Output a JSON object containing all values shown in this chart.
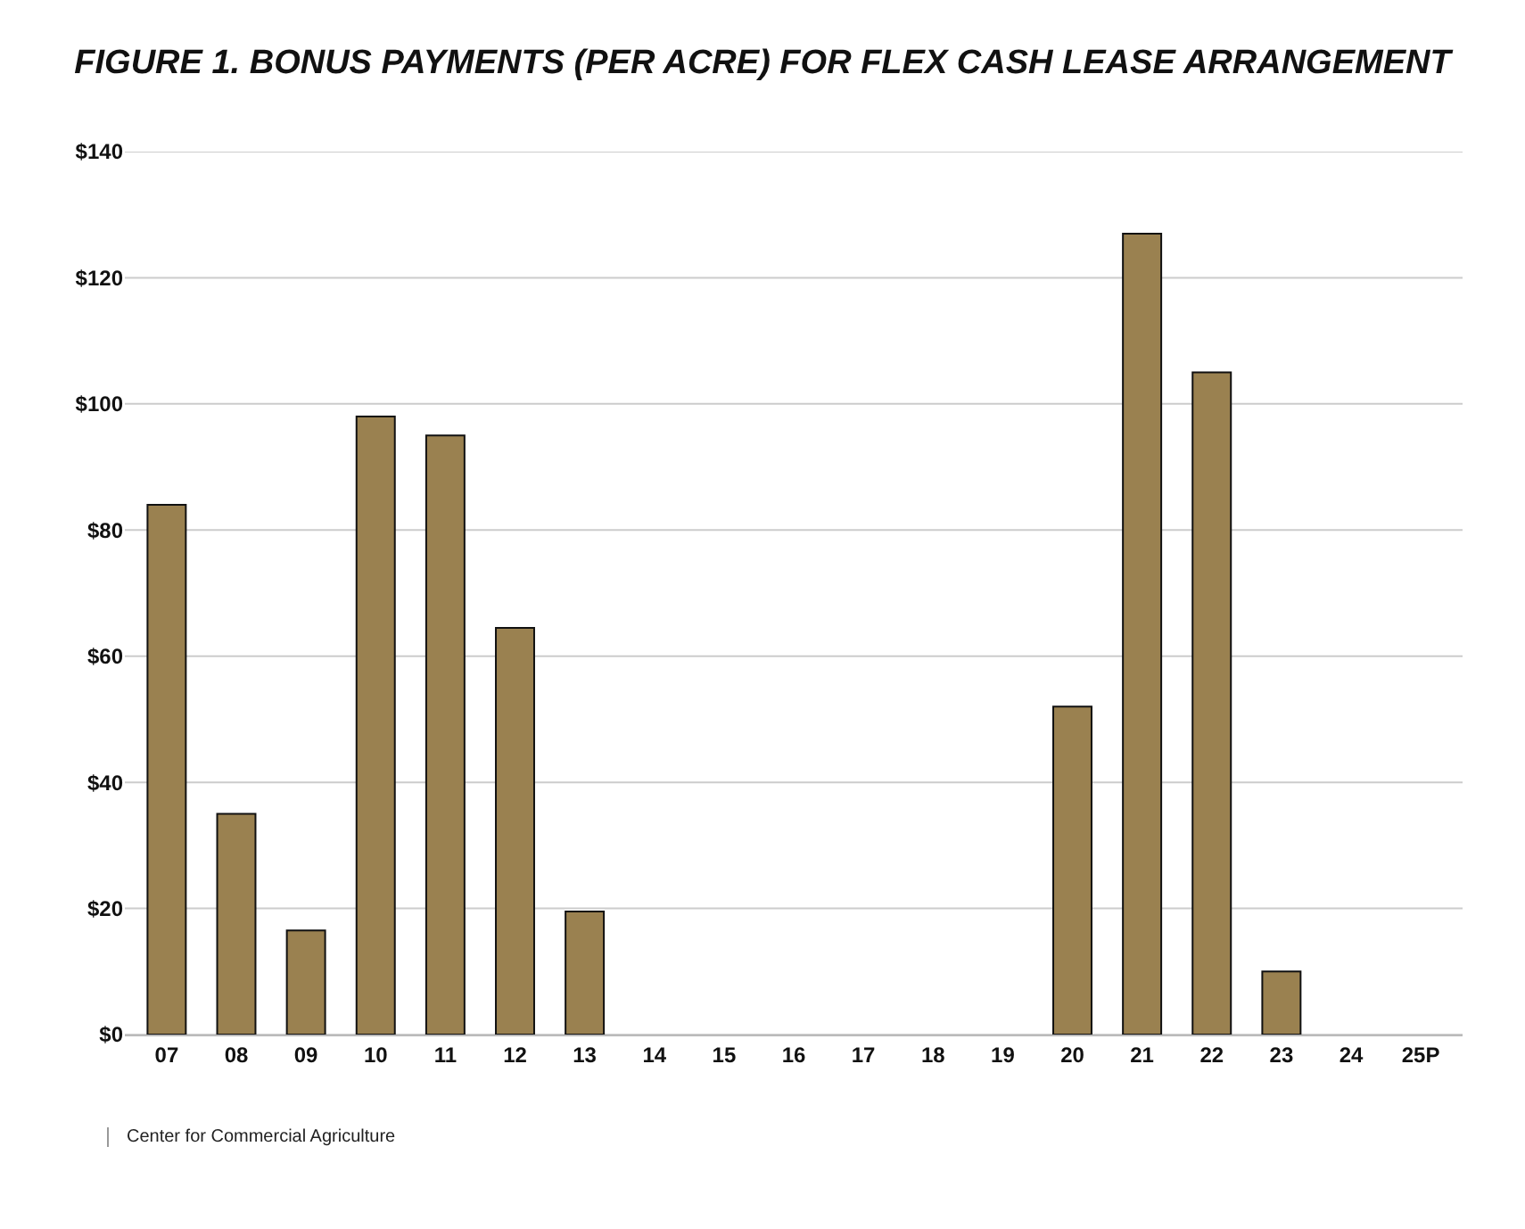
{
  "chart_data": {
    "type": "bar",
    "title": "FIGURE 1. BONUS PAYMENTS (PER ACRE) FOR FLEX CASH LEASE ARRANGEMENT",
    "categories": [
      "07",
      "08",
      "09",
      "10",
      "11",
      "12",
      "13",
      "14",
      "15",
      "16",
      "17",
      "18",
      "19",
      "20",
      "21",
      "22",
      "23",
      "24",
      "25P"
    ],
    "values": [
      84,
      35,
      16.5,
      98,
      95,
      64.5,
      19.5,
      0,
      0,
      0,
      0,
      0,
      0,
      52,
      127,
      105,
      10,
      0,
      0
    ],
    "color": "#9a8150",
    "ylim": [
      0,
      140
    ],
    "yticks": [
      {
        "value": 0,
        "label": "$0"
      },
      {
        "value": 20,
        "label": "$20"
      },
      {
        "value": 40,
        "label": "$40"
      },
      {
        "value": 60,
        "label": "$60"
      },
      {
        "value": 80,
        "label": "$80"
      },
      {
        "value": 100,
        "label": "$100"
      },
      {
        "value": 120,
        "label": "$120"
      },
      {
        "value": 140,
        "label": "$140"
      }
    ],
    "grid": "y",
    "legend": false,
    "annotations": [
      "Center for Commercial Agriculture"
    ]
  }
}
